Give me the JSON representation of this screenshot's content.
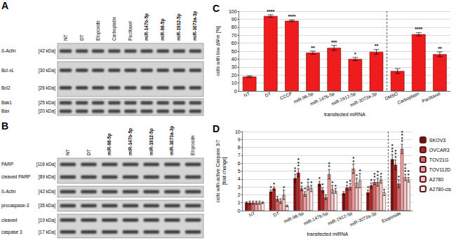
{
  "blots": [
    {
      "title": "A",
      "lanes": [
        {
          "label": "NT",
          "bold": false
        },
        {
          "label": "DT",
          "bold": false
        },
        {
          "label": "Etoposide",
          "bold": false
        },
        {
          "label": "Carboplatin",
          "bold": false
        },
        {
          "label": "Paclitaxel",
          "bold": false
        },
        {
          "label": "miR-147b-5p",
          "bold": true
        },
        {
          "label": "miR-96-5p",
          "bold": true
        },
        {
          "label": "miR-1912-5p",
          "bold": true
        },
        {
          "label": "miR-3073a-3p",
          "bold": true
        }
      ],
      "boxes": [
        {
          "rows": [
            {
              "name": "ß-Actin",
              "kda": "[42 kDa]"
            }
          ]
        },
        {
          "rows": [
            {
              "name": "Bcl-xL",
              "kda": "[30 kDa]"
            },
            {
              "name": "Bcl2",
              "kda": "[26 kDa]"
            }
          ]
        },
        {
          "rows": [
            {
              "name": "Bak1",
              "kda": "[25 kDa]"
            },
            {
              "name": "Bax",
              "kda": "[20 kDa]"
            }
          ]
        }
      ]
    },
    {
      "title": "B",
      "lanes": [
        {
          "label": "NT",
          "bold": false
        },
        {
          "label": "DT",
          "bold": false
        },
        {
          "label": "miR-96-5p",
          "bold": true
        },
        {
          "label": "miR-147b-5p",
          "bold": true
        },
        {
          "label": "miR-1912-5p",
          "bold": true
        },
        {
          "label": "miR-3073a-3p",
          "bold": true
        },
        {
          "label": "Etoposide",
          "bold": false
        }
      ],
      "boxes": [
        {
          "rows": [
            {
              "name": "PARP",
              "kda": "[116 kDa]"
            },
            {
              "name": "cleaved PARP",
              "kda": "[89 kDa]"
            }
          ]
        },
        {
          "rows": [
            {
              "name": "ß-Actin",
              "kda": "[42 kDa]"
            }
          ]
        },
        {
          "rows": [
            {
              "name": "procaspase-3",
              "kda": "[35 kDa]"
            }
          ]
        },
        {
          "rows": [
            {
              "name": "cleaved",
              "kda": "[19 kDa]"
            },
            {
              "name": "caspase 3",
              "kda": "[17 kDa]"
            }
          ]
        }
      ]
    }
  ],
  "chart_data": [
    {
      "title": "C",
      "type": "bar",
      "categories": [
        "NT",
        "DT",
        "CCCP",
        "miR-96-5p",
        "miR-147b-5p",
        "miR-1912-5p",
        "miR-3073a-3p",
        "DMSO",
        "Carboplatin",
        "Paclitaxel"
      ],
      "values": [
        18,
        94,
        88,
        48,
        54,
        40,
        49,
        25,
        71,
        46
      ],
      "errors": [
        1,
        1.5,
        1,
        2,
        3,
        2,
        3,
        3,
        2,
        3
      ],
      "annotations": [
        null,
        "****",
        "****",
        "**",
        "***",
        "*",
        "**",
        null,
        "****",
        "**"
      ],
      "color": "#ee1c1c",
      "ylim": [
        0,
        100
      ],
      "yticks": [
        0,
        10,
        20,
        30,
        40,
        50,
        60,
        70,
        80,
        90,
        100
      ],
      "ylabel": "cells with low ΔΨm [%]",
      "xlabel": "transfected miRNA",
      "grid": true
    },
    {
      "title": "D",
      "type": "bar",
      "categories": [
        "NT",
        "DT",
        "miR-96-5p",
        "miR-147b-5p",
        "miR-1912-5p",
        "miR-3073a-3p",
        "Etoposide"
      ],
      "series": [
        {
          "name": "SKOV3",
          "color": "#7b1010",
          "values": [
            1.0,
            2.4,
            4.1,
            3.4,
            2.2,
            2.3,
            6.5
          ],
          "errors": [
            0.1,
            0.2,
            0.5,
            0.3,
            0.2,
            0.3,
            0.6
          ],
          "annotations": [
            null,
            "*",
            "**",
            "*",
            null,
            "*",
            "***"
          ]
        },
        {
          "name": "OVCAR3",
          "color": "#b22222",
          "values": [
            1.0,
            2.8,
            4.8,
            2.6,
            2.9,
            3.2,
            5.8
          ],
          "errors": [
            0.2,
            0.2,
            0.5,
            0.3,
            0.3,
            0.3,
            0.6
          ],
          "annotations": [
            null,
            "*",
            "***",
            "*",
            "*",
            "*",
            "***"
          ]
        },
        {
          "name": "TOV21G",
          "color": "#d36b6b",
          "values": [
            1.0,
            1.5,
            2.8,
            1.7,
            3.0,
            3.6,
            3.4
          ],
          "errors": [
            0.2,
            0.3,
            0.3,
            0.3,
            0.4,
            0.3,
            0.5
          ],
          "annotations": [
            null,
            null,
            "*",
            null,
            "*",
            "**",
            "*"
          ]
        },
        {
          "name": "TOV112D",
          "color": "#e8a0a0",
          "values": [
            1.0,
            1.2,
            2.1,
            4.6,
            5.3,
            3.6,
            7.8
          ],
          "errors": [
            0.2,
            0.3,
            0.3,
            0.6,
            0.6,
            0.5,
            0.6
          ],
          "annotations": [
            null,
            null,
            "*",
            "**",
            "**",
            "**",
            "****"
          ]
        },
        {
          "name": "A2780",
          "color": "#f2c9c9",
          "values": [
            1.0,
            2.0,
            3.1,
            2.7,
            3.5,
            3.9,
            4.2
          ],
          "errors": [
            0.2,
            0.6,
            0.5,
            0.5,
            0.6,
            0.4,
            0.4
          ],
          "annotations": [
            null,
            "*",
            "*",
            "*",
            "*",
            "*",
            "***"
          ]
        },
        {
          "name": "A2780-cis",
          "color": "#fbeaea",
          "values": [
            1.0,
            0.6,
            2.8,
            2.5,
            3.8,
            2.3,
            3.9
          ],
          "errors": [
            0.1,
            0.1,
            0.4,
            0.3,
            0.9,
            0.4,
            0.3
          ],
          "annotations": [
            null,
            null,
            "*",
            "*",
            "*",
            null,
            "**"
          ]
        }
      ],
      "ylim": [
        0,
        10
      ],
      "yticks": [
        0,
        1,
        2,
        3,
        4,
        5,
        6,
        7,
        8,
        9,
        10
      ],
      "ylabel": "cells with active Caspase 3/7\n[fold change]",
      "xlabel": "transfected miRNA",
      "grid": true,
      "legend": "right"
    }
  ]
}
